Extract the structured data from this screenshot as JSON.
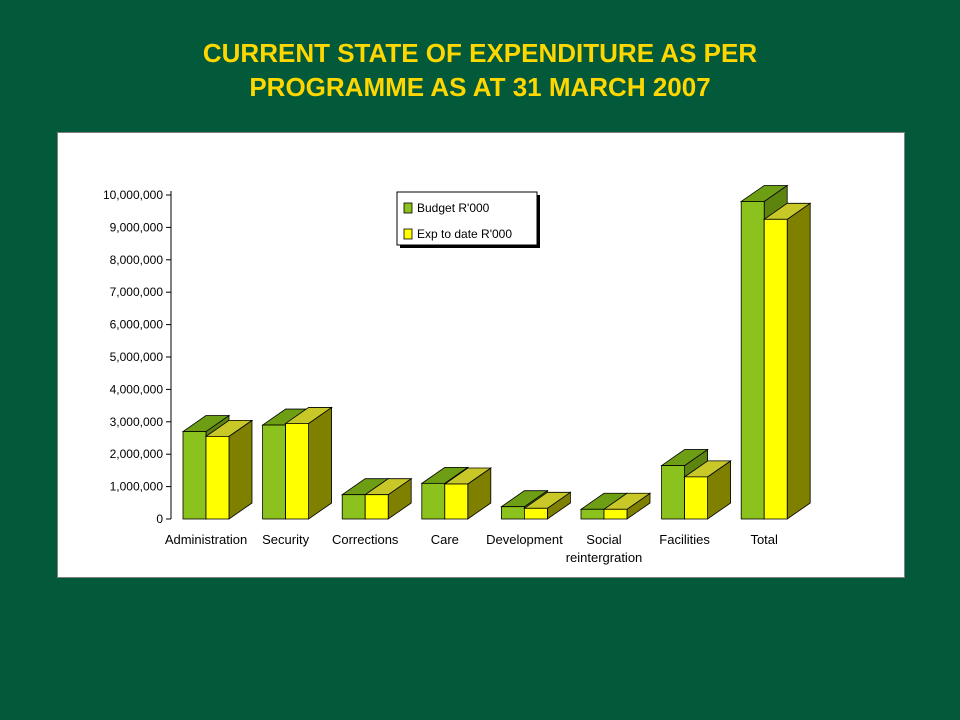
{
  "title_line1": "CURRENT STATE OF EXPENDITURE AS PER",
  "title_line2": "PROGRAMME AS AT 31 MARCH 2007",
  "colors": {
    "background": "#035A3A",
    "title": "#FFD700",
    "budget_front": "#8CC21E",
    "budget_top": "#6E9E14",
    "budget_side": "#5E8410",
    "exp_front": "#FFFF00",
    "exp_top": "#C8C828",
    "exp_side": "#7F7F00"
  },
  "chart_data": {
    "type": "bar",
    "title": "",
    "xlabel": "",
    "ylabel": "",
    "ylim": [
      0,
      10000000
    ],
    "yticks": [
      0,
      1000000,
      2000000,
      3000000,
      4000000,
      5000000,
      6000000,
      7000000,
      8000000,
      9000000,
      10000000
    ],
    "ytick_labels": [
      "0",
      "1,000,000",
      "2,000,000",
      "3,000,000",
      "4,000,000",
      "5,000,000",
      "6,000,000",
      "7,000,000",
      "8,000,000",
      "9,000,000",
      "10,000,000"
    ],
    "categories": [
      [
        "Administration"
      ],
      [
        "Security"
      ],
      [
        "Corrections"
      ],
      [
        "Care"
      ],
      [
        "Development"
      ],
      [
        "Social",
        "reintergration"
      ],
      [
        "Facilities"
      ],
      [
        "Total"
      ]
    ],
    "series": [
      {
        "name": "Budget R'000",
        "values": [
          2700000,
          2900000,
          750000,
          1100000,
          380000,
          300000,
          1650000,
          9800000
        ]
      },
      {
        "name": "Exp to date R'000",
        "values": [
          2550000,
          2950000,
          750000,
          1080000,
          330000,
          300000,
          1300000,
          9250000
        ]
      }
    ],
    "legend": "top-center",
    "grid": false,
    "style": "3d-clustered-column"
  }
}
